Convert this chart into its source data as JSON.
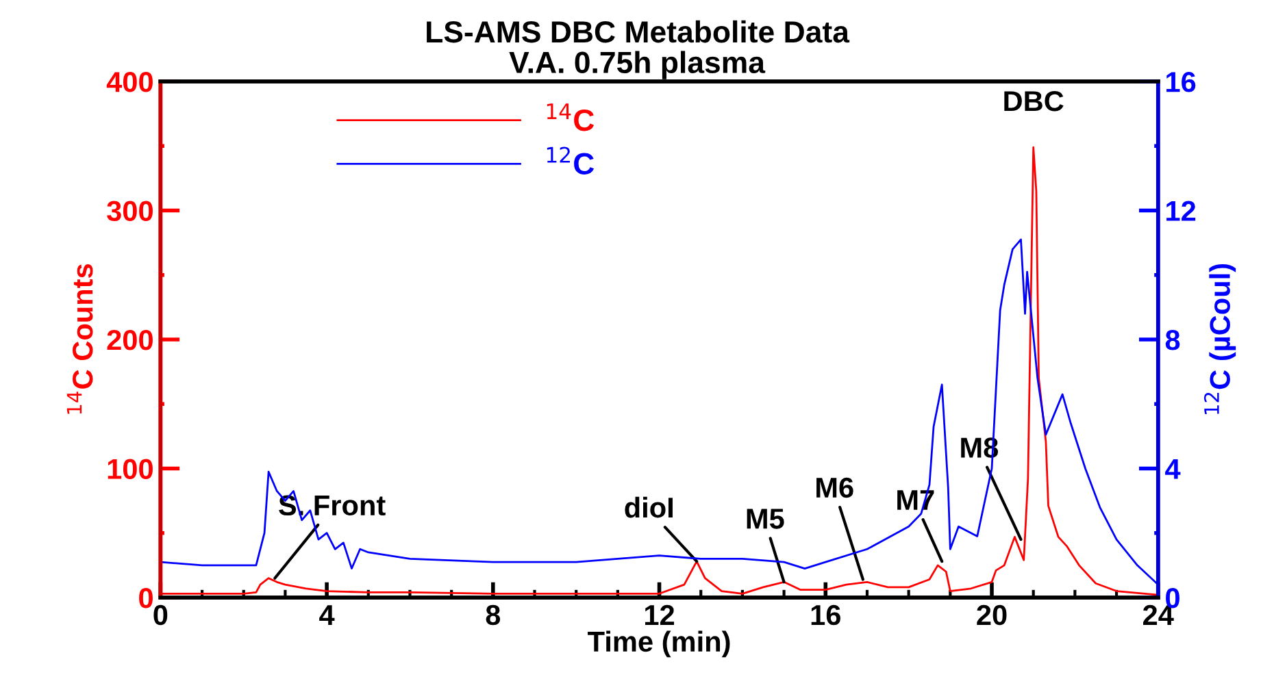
{
  "chart_data": {
    "type": "line",
    "title": "LS-AMS DBC Metabolite Data",
    "subtitle": "V.A. 0.75h plasma",
    "xlabel": "Time (min)",
    "ylabel": "$^{14}$C Counts",
    "y2label": "$^{12}$C (µCoul)",
    "xlim": [
      0,
      24
    ],
    "xticks": [
      0,
      4,
      8,
      12,
      16,
      20,
      24
    ],
    "ylim": [
      0,
      400
    ],
    "yticks": [
      0,
      100,
      200,
      300,
      400
    ],
    "y2lim": [
      0,
      16
    ],
    "y2ticks": [
      0,
      4,
      8,
      12,
      16
    ],
    "grid": false,
    "legend": "top left",
    "marker": "none",
    "line_style": "solid",
    "series": [
      {
        "name": "$^{14}$C",
        "color": "#ff0000",
        "x": [
          0,
          1,
          2,
          2.3,
          2.4,
          2.6,
          2.8,
          3.0,
          3.5,
          4.0,
          5.0,
          6.0,
          8.0,
          10.0,
          12.0,
          12.6,
          12.9,
          13.1,
          13.5,
          14.0,
          14.5,
          15.0,
          15.4,
          16.0,
          16.5,
          17.0,
          17.5,
          18.0,
          18.5,
          18.7,
          18.9,
          19.0,
          19.5,
          20.0,
          20.1,
          20.3,
          20.55,
          20.77,
          20.87,
          21.0,
          21.07,
          21.13,
          21.3,
          21.36,
          21.6,
          21.8,
          22.1,
          22.5,
          23.0,
          24.0
        ],
        "values": [
          3,
          3,
          3,
          4,
          10,
          15,
          12,
          10,
          7,
          5,
          4,
          4,
          3,
          3,
          3,
          10,
          28,
          15,
          5,
          3,
          8,
          12,
          6,
          6,
          10,
          12,
          8,
          8,
          14,
          25,
          20,
          5,
          7,
          12,
          21,
          25,
          47,
          29,
          92,
          349,
          315,
          170,
          121,
          71,
          47,
          40,
          25,
          11,
          5,
          2
        ]
      },
      {
        "name": "$^{12}$C",
        "color": "#0000ff",
        "axis": "y2",
        "x": [
          0,
          1,
          2,
          2.3,
          2.5,
          2.6,
          2.8,
          3.0,
          3.2,
          3.4,
          3.6,
          3.8,
          4.0,
          4.2,
          4.4,
          4.6,
          4.8,
          5.0,
          6.0,
          8.0,
          10.0,
          12.0,
          13.0,
          14.0,
          15.0,
          15.5,
          16.0,
          17.0,
          18.0,
          18.3,
          18.5,
          18.6,
          18.8,
          18.95,
          19.0,
          19.2,
          19.65,
          20.0,
          20.2,
          20.3,
          20.5,
          20.7,
          20.8,
          20.85,
          21.1,
          21.3,
          21.7,
          21.9,
          22.25,
          22.6,
          23.0,
          23.5,
          24.0
        ],
        "values": [
          1.1,
          1.0,
          1.0,
          1.0,
          2.0,
          3.9,
          3.3,
          3.0,
          3.3,
          2.4,
          2.7,
          1.8,
          2.0,
          1.5,
          1.7,
          0.9,
          1.5,
          1.4,
          1.2,
          1.1,
          1.1,
          1.3,
          1.2,
          1.2,
          1.1,
          0.9,
          1.1,
          1.5,
          2.2,
          2.6,
          3.5,
          5.3,
          6.6,
          3.4,
          1.5,
          2.2,
          1.9,
          4.0,
          8.9,
          9.7,
          10.8,
          11.1,
          8.8,
          10.1,
          6.8,
          5.05,
          6.3,
          5.4,
          4.0,
          2.8,
          1.8,
          1.0,
          0.4
        ]
      }
    ],
    "annotations": [
      {
        "text": "S. Front",
        "x": 2.75,
        "y": 15
      },
      {
        "text": "dioI",
        "x": 12.9,
        "y": 28
      },
      {
        "text": "M5",
        "x": 15.0,
        "y": 12
      },
      {
        "text": "M6",
        "x": 16.9,
        "y": 14
      },
      {
        "text": "M7",
        "x": 18.8,
        "y": 28
      },
      {
        "text": "M8",
        "x": 20.7,
        "y": 45
      },
      {
        "text": "DBC",
        "x": 21.0,
        "y": 349
      }
    ]
  }
}
